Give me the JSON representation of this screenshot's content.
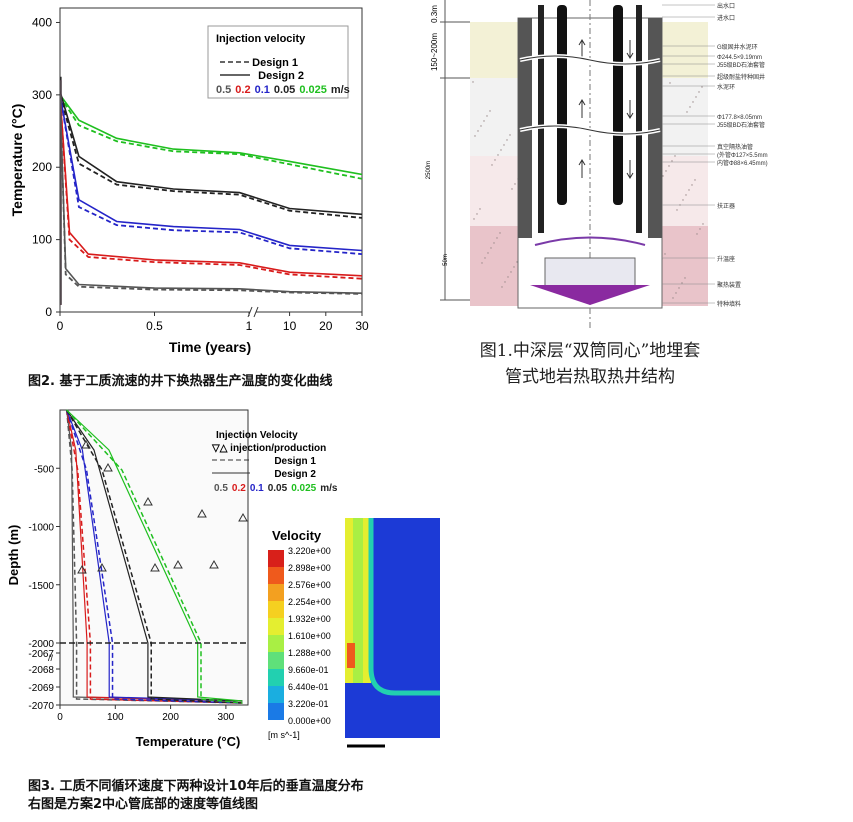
{
  "fig2": {
    "chart_data": {
      "type": "line",
      "ylabel": "Temperature (°C)",
      "xlabel": "Time (years)",
      "ylim": [
        0,
        420
      ],
      "yticks": [
        "0",
        "100",
        "200",
        "300",
        "400"
      ],
      "xticks_left": [
        "0",
        "0.5",
        "1"
      ],
      "xticks_right": [
        "10",
        "20",
        "30"
      ],
      "legend": {
        "title": "Injection velocity",
        "design1": "Design 1",
        "design2": "Design 2",
        "velocities": [
          {
            "label": "0.5",
            "color": "#555555"
          },
          {
            "label": "0.2",
            "color": "#d81b1b"
          },
          {
            "label": "0.1",
            "color": "#2424c8"
          },
          {
            "label": "0.05",
            "color": "#222222"
          },
          {
            "label": "0.025",
            "color": "#1fbf1f"
          }
        ],
        "unit": "m/s"
      },
      "series": [
        {
          "color": "#1fbf1f",
          "design2_values": [
            [
              0,
              300
            ],
            [
              0.1,
              265
            ],
            [
              0.3,
              240
            ],
            [
              0.6,
              225
            ],
            [
              0.95,
              220
            ],
            [
              10,
              208
            ],
            [
              30,
              190
            ]
          ],
          "design1_values": [
            [
              0,
              298
            ],
            [
              0.1,
              258
            ],
            [
              0.3,
              236
            ],
            [
              0.6,
              222
            ],
            [
              0.95,
              218
            ],
            [
              10,
              204
            ],
            [
              30,
              184
            ]
          ]
        },
        {
          "color": "#222222",
          "design2_values": [
            [
              0,
              305
            ],
            [
              0.1,
              215
            ],
            [
              0.3,
              180
            ],
            [
              0.6,
              170
            ],
            [
              0.95,
              165
            ],
            [
              10,
              143
            ],
            [
              30,
              135
            ]
          ],
          "design1_values": [
            [
              0,
              300
            ],
            [
              0.1,
              205
            ],
            [
              0.3,
              176
            ],
            [
              0.6,
              167
            ],
            [
              0.95,
              162
            ],
            [
              10,
              140
            ],
            [
              30,
              130
            ]
          ]
        },
        {
          "color": "#2424c8",
          "design2_values": [
            [
              0,
              300
            ],
            [
              0.1,
              155
            ],
            [
              0.3,
              125
            ],
            [
              0.6,
              118
            ],
            [
              0.95,
              114
            ],
            [
              10,
              92
            ],
            [
              30,
              85
            ]
          ],
          "design1_values": [
            [
              0,
              300
            ],
            [
              0.1,
              145
            ],
            [
              0.3,
              120
            ],
            [
              0.6,
              113
            ],
            [
              0.95,
              110
            ],
            [
              10,
              88
            ],
            [
              30,
              80
            ]
          ]
        },
        {
          "color": "#d81b1b",
          "design2_values": [
            [
              0,
              300
            ],
            [
              0.05,
              110
            ],
            [
              0.15,
              80
            ],
            [
              0.5,
              72
            ],
            [
              0.95,
              68
            ],
            [
              10,
              55
            ],
            [
              30,
              50
            ]
          ],
          "design1_values": [
            [
              0,
              300
            ],
            [
              0.05,
              100
            ],
            [
              0.15,
              76
            ],
            [
              0.5,
              69
            ],
            [
              0.95,
              65
            ],
            [
              10,
              52
            ],
            [
              30,
              46
            ]
          ]
        },
        {
          "color": "#555555",
          "design2_values": [
            [
              0,
              300
            ],
            [
              0.03,
              60
            ],
            [
              0.1,
              38
            ],
            [
              0.5,
              33
            ],
            [
              0.95,
              32
            ],
            [
              10,
              28
            ],
            [
              30,
              26
            ]
          ],
          "design1_values": [
            [
              0,
              300
            ],
            [
              0.03,
              52
            ],
            [
              0.1,
              35
            ],
            [
              0.5,
              31
            ],
            [
              0.95,
              30
            ],
            [
              10,
              27
            ],
            [
              30,
              25
            ]
          ]
        }
      ]
    },
    "caption": "图2. 基于工质流速的井下换热器生产温度的变化曲线"
  },
  "fig1": {
    "caption_line1": "图1.中深层“双筒同心”地埋套",
    "caption_line2": "管式地岩热取热井结构",
    "dims": {
      "top": "0.3m",
      "upper": "150~200m",
      "main": "2500m",
      "bottom": "50m"
    },
    "labels": [
      "出水口",
      "进水口",
      "G级固井水泥环",
      "Φ244.5×9.19mm",
      "J55级BD石油套管",
      "超级耐盐特种固井",
      "水泥环",
      "Φ177.8×8.05mm",
      "J55级BD石油套管",
      "真空隔热油管",
      "(外管Φ127×5.5mm",
      "内管Φ88×6.45mm)",
      "扶正器",
      "升温座",
      "聚热装置",
      "特种填料"
    ]
  },
  "fig3": {
    "chart_data": {
      "type": "line",
      "ylabel": "Depth (m)",
      "xlabel": "Temperature (°C)",
      "yticks_top": [
        "-500",
        "-1000",
        "-1500",
        "-2000"
      ],
      "yticks_bottom": [
        "-2067",
        "-2068",
        "-2069",
        "-2070"
      ],
      "xticks": [
        "0",
        "100",
        "200",
        "300"
      ],
      "legend": {
        "title": "Injection Velocity",
        "markers": "injection/production",
        "design1": "Design 1",
        "design2": "Design 2",
        "velocities": [
          {
            "label": "0.5",
            "color": "#555555"
          },
          {
            "label": "0.2",
            "color": "#d81b1b"
          },
          {
            "label": "0.1",
            "color": "#2424c8"
          },
          {
            "label": "0.05",
            "color": "#222222"
          },
          {
            "label": "0.025",
            "color": "#1fbf1f"
          }
        ],
        "unit": "m/s"
      }
    },
    "colorbar": {
      "title": "Velocity",
      "values": [
        "3.220e+00",
        "2.898e+00",
        "2.576e+00",
        "2.254e+00",
        "1.932e+00",
        "1.610e+00",
        "1.288e+00",
        "9.660e-01",
        "6.440e-01",
        "3.220e-01",
        "0.000e+00"
      ],
      "unit": "[m s^-1]"
    },
    "caption_line1": "图3. 工质不同循环速度下两种设计10年后的垂直温度分布",
    "caption_line2": "右图是方案2中心管底部的速度等值线图"
  }
}
